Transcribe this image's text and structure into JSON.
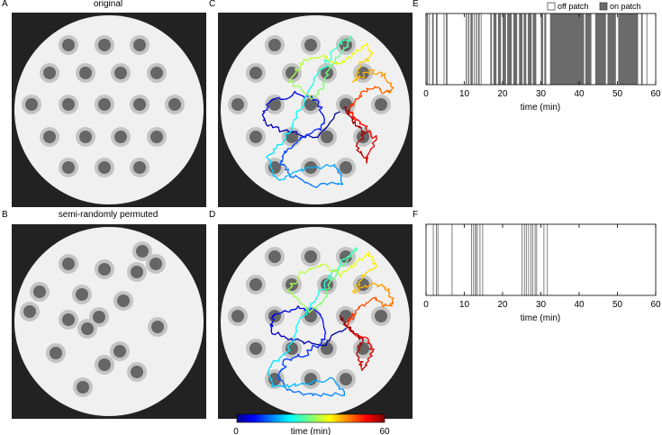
{
  "panels": {
    "a": {
      "letter": "A",
      "title": "original"
    },
    "b": {
      "letter": "B",
      "title": "semi-randomly permuted"
    },
    "c": {
      "letter": "C"
    },
    "d": {
      "letter": "D"
    },
    "e": {
      "letter": "E"
    },
    "f": {
      "letter": "F"
    }
  },
  "legend": {
    "off_patch": "off patch",
    "on_patch": "on patch"
  },
  "colorbar": {
    "min_label": "0",
    "max_label": "60",
    "label": "time (min)"
  },
  "raster_axis": {
    "xlabel": "time (min)",
    "ticks": [
      "0",
      "10",
      "20",
      "30",
      "40",
      "50",
      "60"
    ]
  },
  "colors": {
    "arena_bg": "#222222",
    "arena_floor": "#f0f0f0",
    "patch_halo": "#c4c4c4",
    "patch_core": "#666666",
    "on_patch_fill": "#6b6b6b"
  },
  "chart_data": [
    {
      "type": "bar",
      "title": "",
      "xlabel": "time (min)",
      "xlim": [
        0,
        60
      ],
      "legend": [
        "off patch",
        "on patch"
      ],
      "on_patch_intervals": [
        [
          0.2,
          0.5
        ],
        [
          0.8,
          1.0
        ],
        [
          1.6,
          2.0
        ],
        [
          2.6,
          3.0
        ],
        [
          4.6,
          4.8
        ],
        [
          5.2,
          5.6
        ],
        [
          10.4,
          10.7
        ],
        [
          11.0,
          11.3
        ],
        [
          11.6,
          12.2
        ],
        [
          12.5,
          12.7
        ],
        [
          13.0,
          13.3
        ],
        [
          13.6,
          14.0
        ],
        [
          14.3,
          14.5
        ],
        [
          16.8,
          17.2
        ],
        [
          17.6,
          18.4
        ],
        [
          18.8,
          19.6
        ],
        [
          20.0,
          20.9
        ],
        [
          21.2,
          22.4
        ],
        [
          22.8,
          23.8
        ],
        [
          24.3,
          25.2
        ],
        [
          25.5,
          26.2
        ],
        [
          26.6,
          27.6
        ],
        [
          27.9,
          28.8
        ],
        [
          30.0,
          30.6
        ],
        [
          30.9,
          31.4
        ],
        [
          32.4,
          41.3
        ],
        [
          41.6,
          43.2
        ],
        [
          44.2,
          47.0
        ],
        [
          47.4,
          49.6
        ],
        [
          50.2,
          55.4
        ],
        [
          56.2,
          56.6
        ],
        [
          57.6,
          57.8
        ]
      ]
    },
    {
      "type": "bar",
      "title": "",
      "xlabel": "time (min)",
      "xlim": [
        0,
        60
      ],
      "on_patch_intervals": [
        [
          1.8,
          2.0
        ],
        [
          2.6,
          2.8
        ],
        [
          3.0,
          3.2
        ],
        [
          6.7,
          6.9
        ],
        [
          11.8,
          12.0
        ],
        [
          12.3,
          12.5
        ],
        [
          12.8,
          13.1
        ],
        [
          13.3,
          13.5
        ],
        [
          14.0,
          14.2
        ],
        [
          14.7,
          14.9
        ],
        [
          25.0,
          25.2
        ],
        [
          25.6,
          25.8
        ],
        [
          26.1,
          26.3
        ],
        [
          26.7,
          26.9
        ],
        [
          27.3,
          27.5
        ],
        [
          27.8,
          28.0
        ],
        [
          28.4,
          28.6
        ],
        [
          28.8,
          29.0
        ],
        [
          30.7,
          30.9
        ],
        [
          31.6,
          31.8
        ]
      ]
    }
  ]
}
